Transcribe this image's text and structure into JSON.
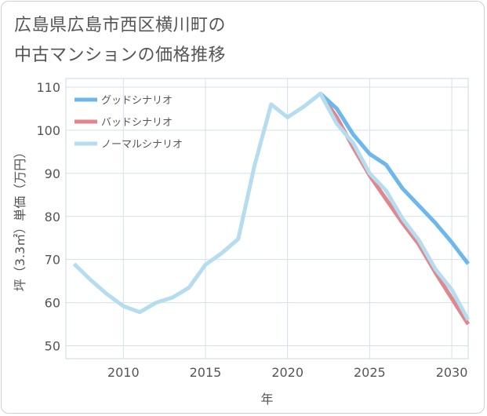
{
  "chart_data": {
    "type": "line",
    "title_lines": [
      "広島県広島市西区横川町の",
      "中古マンションの価格推移"
    ],
    "xlabel": "年",
    "ylabel": "坪（3.3㎡）単価（万円）",
    "xlim": [
      2006.5,
      2031
    ],
    "ylim": [
      47,
      112
    ],
    "x_ticks": [
      2010,
      2015,
      2020,
      2025,
      2030
    ],
    "y_ticks": [
      50,
      60,
      70,
      80,
      90,
      100,
      110
    ],
    "grid": true,
    "legend": {
      "position": "top-left"
    },
    "series": [
      {
        "name": "グッドシナリオ",
        "color": "#6cb8ec",
        "x": [
          2022,
          2023,
          2024,
          2025,
          2026,
          2027,
          2028,
          2029,
          2030,
          2031
        ],
        "values": [
          108.5,
          105,
          99,
          94.5,
          92,
          86.5,
          82.5,
          78.5,
          74,
          69
        ]
      },
      {
        "name": "バッドシナリオ",
        "color": "#e0868f",
        "x": [
          2022,
          2023,
          2024,
          2025,
          2026,
          2027,
          2028,
          2029,
          2030,
          2031
        ],
        "values": [
          108.5,
          103,
          96,
          89.5,
          84,
          78.5,
          73.5,
          67,
          61,
          55
        ]
      },
      {
        "name": "ノーマルシナリオ",
        "color": "#b5dcef",
        "x": [
          2007,
          2008,
          2009,
          2010,
          2011,
          2012,
          2013,
          2014,
          2015,
          2016,
          2017,
          2018,
          2019,
          2020,
          2021,
          2022,
          2023,
          2024,
          2025,
          2026,
          2027,
          2028,
          2029,
          2030,
          2031
        ],
        "values": [
          69,
          65.3,
          62,
          59.2,
          57.8,
          60,
          61.2,
          63.5,
          68.8,
          71.5,
          74.8,
          92,
          106,
          103,
          105.5,
          108.5,
          101.5,
          97,
          90,
          86,
          79.5,
          74.5,
          67.8,
          63,
          56
        ]
      }
    ]
  }
}
